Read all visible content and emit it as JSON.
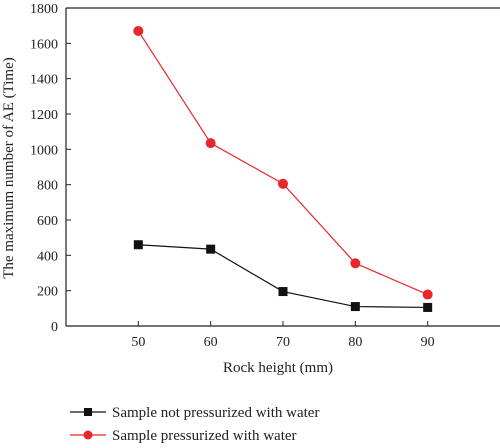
{
  "chart_data": {
    "type": "line",
    "title": "",
    "xlabel": "Rock height (mm)",
    "ylabel": "The maximum number of AE (Time)",
    "x": [
      50,
      60,
      70,
      80,
      90
    ],
    "xlim": [
      40,
      100
    ],
    "ylim": [
      0,
      1800
    ],
    "xticks": [
      50,
      60,
      70,
      80,
      90
    ],
    "yticks": [
      0,
      200,
      400,
      600,
      800,
      1000,
      1200,
      1400,
      1600,
      1800
    ],
    "grid": false,
    "legend_position": "bottom",
    "series": [
      {
        "name": "Sample not pressurized with water",
        "values": [
          460,
          435,
          195,
          110,
          105
        ],
        "color": "#111111",
        "marker": "square"
      },
      {
        "name": "Sample pressurized with water",
        "values": [
          1670,
          1035,
          805,
          355,
          178
        ],
        "color": "#e8262b",
        "marker": "circle"
      }
    ]
  }
}
